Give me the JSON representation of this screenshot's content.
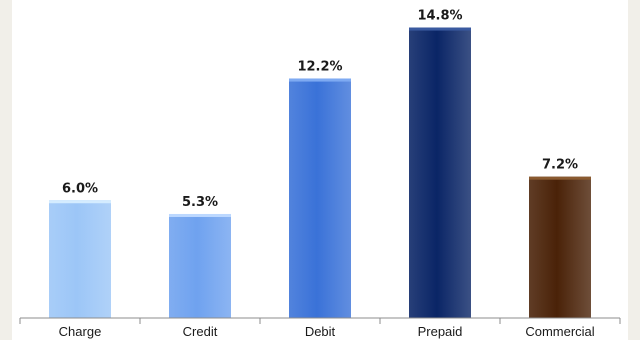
{
  "chart_data": {
    "type": "bar",
    "categories": [
      "Charge",
      "Credit",
      "Debit",
      "Prepaid",
      "Commercial"
    ],
    "values": [
      6.0,
      5.3,
      12.2,
      14.8,
      7.2
    ],
    "value_labels": [
      "6.0%",
      "5.3%",
      "12.2%",
      "14.8%",
      "7.2%"
    ],
    "bar_colors": [
      "#9cc6f7",
      "#6fa2ef",
      "#3a72d8",
      "#0a2566",
      "#4a2208"
    ],
    "bar_top_highlights": [
      "#d4ecff",
      "#bcd8ff",
      "#7eaaf2",
      "#3a5aa0",
      "#8a5a30"
    ],
    "ylim": [
      0,
      16
    ],
    "grid": false,
    "legend": "none",
    "title": "",
    "xlabel": "",
    "ylabel": ""
  }
}
